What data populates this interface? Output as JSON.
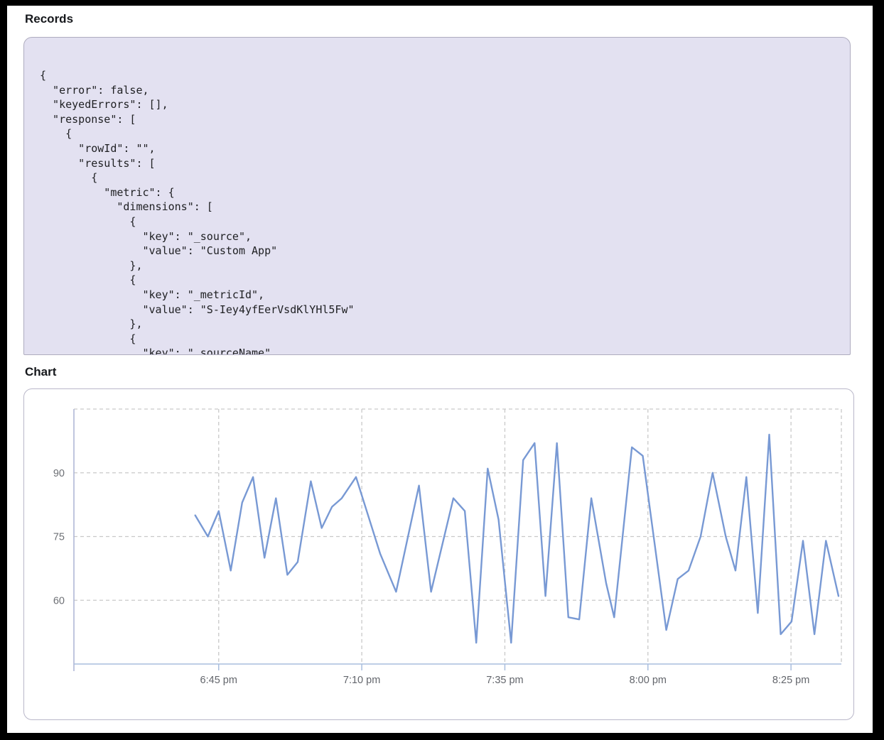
{
  "records": {
    "title": "Records",
    "panel_bg": "#e3e1f1",
    "json_lines": [
      "{",
      "  \"error\": false,",
      "  \"keyedErrors\": [],",
      "  \"response\": [",
      "    {",
      "      \"rowId\": \"\",",
      "      \"results\": [",
      "        {",
      "          \"metric\": {",
      "            \"dimensions\": [",
      "              {",
      "                \"key\": \"_source\",",
      "                \"value\": \"Custom App\"",
      "              },",
      "              {",
      "                \"key\": \"_metricId\",",
      "                \"value\": \"S-Iey4yfEerVsdKlYHl5Fw\"",
      "              },",
      "              {",
      "                \"key\": \"_sourceName\","
    ]
  },
  "chart": {
    "title": "Chart"
  },
  "chart_data": {
    "type": "line",
    "title": "Chart",
    "x_axis": {
      "unit": "minutes_after_6:45pm",
      "tick_labels": [
        "6:45 pm",
        "7:10 pm",
        "7:35 pm",
        "8:00 pm",
        "8:25 pm"
      ],
      "tick_minutes": [
        0,
        25,
        50,
        75,
        100
      ],
      "range_minutes": [
        -25.3,
        108.8
      ],
      "axis_color": "#a9bede",
      "label_color": "#63666c"
    },
    "y_axis": {
      "ticks": [
        90,
        75,
        60
      ],
      "range": [
        45,
        105
      ],
      "axis_color": "#abb4d4",
      "label_color": "#6d7075"
    },
    "grid": {
      "on": true,
      "color": "#c9c9c9",
      "dash": [
        5,
        4
      ],
      "top_border_value": 105
    },
    "series": [
      {
        "name": "metric-series",
        "color": "#7899d4",
        "points": [
          [
            -4.1,
            80
          ],
          [
            -1.9,
            75
          ],
          [
            0,
            81
          ],
          [
            2.1,
            67
          ],
          [
            4.1,
            83
          ],
          [
            6,
            89
          ],
          [
            8,
            70
          ],
          [
            10,
            84
          ],
          [
            12,
            66
          ],
          [
            13.8,
            69
          ],
          [
            16.1,
            88
          ],
          [
            18,
            77
          ],
          [
            19.8,
            82
          ],
          [
            21.5,
            84
          ],
          [
            24,
            89
          ],
          [
            28.2,
            71
          ],
          [
            31,
            62
          ],
          [
            35,
            87
          ],
          [
            37.1,
            62
          ],
          [
            41,
            84
          ],
          [
            43,
            81
          ],
          [
            45,
            50
          ],
          [
            47,
            91
          ],
          [
            48.9,
            79
          ],
          [
            51.1,
            50
          ],
          [
            53.2,
            93
          ],
          [
            55.2,
            97
          ],
          [
            57.1,
            61
          ],
          [
            59.1,
            97
          ],
          [
            61.1,
            56
          ],
          [
            63,
            55.5
          ],
          [
            65.1,
            84
          ],
          [
            67.7,
            64
          ],
          [
            69.1,
            56
          ],
          [
            72.2,
            96
          ],
          [
            74.1,
            94
          ],
          [
            78.2,
            53
          ],
          [
            80.2,
            65
          ],
          [
            82.1,
            67
          ],
          [
            84.2,
            75
          ],
          [
            86.3,
            90
          ],
          [
            88.6,
            75
          ],
          [
            90.3,
            67
          ],
          [
            92.2,
            89
          ],
          [
            94.2,
            57
          ],
          [
            96.2,
            99
          ],
          [
            98.2,
            52
          ],
          [
            100.1,
            55
          ],
          [
            102.1,
            74
          ],
          [
            104.1,
            52
          ],
          [
            106.1,
            74
          ],
          [
            108.3,
            61
          ]
        ]
      }
    ]
  }
}
